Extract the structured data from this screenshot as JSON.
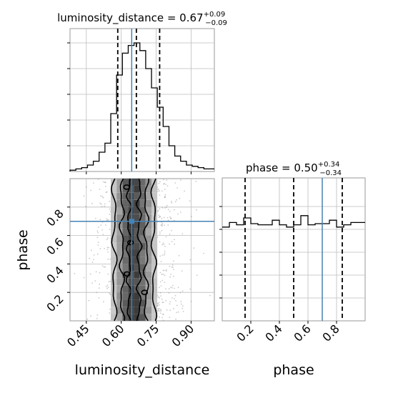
{
  "chart_data": {
    "type": "corner",
    "parameters": [
      "luminosity_distance",
      "phase"
    ],
    "truth": {
      "luminosity_distance": 0.645,
      "phase": 0.7
    },
    "marginals": [
      {
        "parameter": "luminosity_distance",
        "title_prefix": "luminosity_distance = ",
        "median": "0.67",
        "plus": "+0.09",
        "minus": "−0.09",
        "quantiles": [
          0.585,
          0.665,
          0.765
        ],
        "xlim": [
          0.38,
          1.0
        ],
        "bin_edges": [
          0.38,
          0.405,
          0.43,
          0.455,
          0.48,
          0.505,
          0.53,
          0.555,
          0.58,
          0.605,
          0.63,
          0.655,
          0.68,
          0.705,
          0.73,
          0.755,
          0.78,
          0.805,
          0.83,
          0.855,
          0.88,
          0.905,
          0.93,
          0.955,
          0.98,
          1.0
        ],
        "counts": [
          1,
          2,
          3,
          5,
          8,
          15,
          22,
          45,
          75,
          92,
          98,
          100,
          94,
          80,
          65,
          50,
          35,
          20,
          12,
          8,
          5,
          4,
          3,
          2,
          2
        ]
      },
      {
        "parameter": "phase",
        "title_prefix": "phase = ",
        "median": "0.50",
        "plus": "+0.34",
        "minus": "−0.34",
        "quantiles": [
          0.16,
          0.5,
          0.84
        ],
        "truth": 0.7,
        "xlim": [
          0.0,
          1.0
        ],
        "x_ticks": [
          "0.2",
          "0.4",
          "0.6",
          "0.8"
        ],
        "bin_edges": [
          0.0,
          0.05,
          0.1,
          0.15,
          0.2,
          0.25,
          0.3,
          0.35,
          0.4,
          0.45,
          0.5,
          0.55,
          0.6,
          0.65,
          0.7,
          0.75,
          0.8,
          0.85,
          0.9,
          0.95,
          1.0
        ],
        "counts": [
          82,
          86,
          84,
          90,
          85,
          84,
          84,
          88,
          84,
          82,
          84,
          92,
          84,
          85,
          85,
          88,
          82,
          84,
          86,
          86
        ]
      }
    ],
    "joint": {
      "x": "luminosity_distance",
      "y": "phase",
      "xlim": [
        0.38,
        1.0
      ],
      "ylim": [
        0.0,
        1.0
      ],
      "x_ticks": [
        "0.45",
        "0.60",
        "0.75",
        "0.90"
      ],
      "y_ticks": [
        "0.2",
        "0.4",
        "0.6",
        "0.8"
      ],
      "xlabel": "luminosity_distance",
      "ylabel": "phase",
      "contour_levels": 3
    },
    "grid": true
  }
}
